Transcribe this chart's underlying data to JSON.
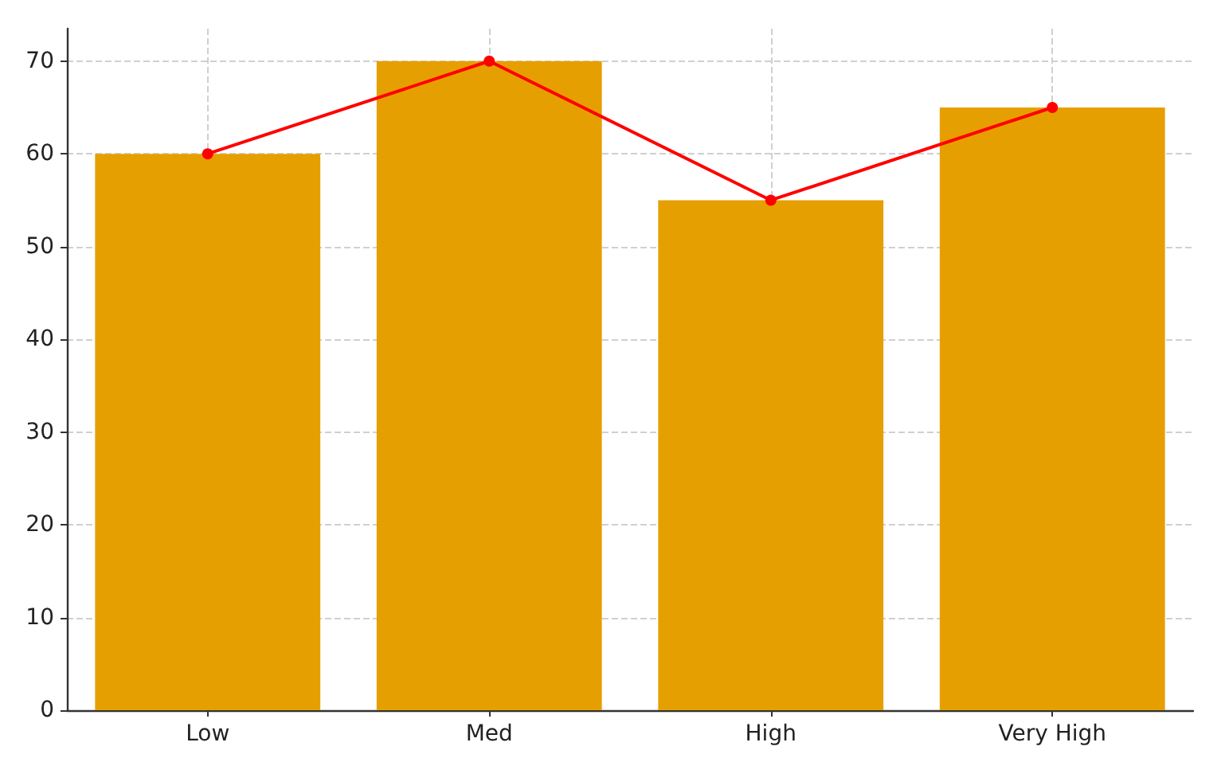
{
  "chart_data": {
    "type": "bar",
    "categories": [
      "Low",
      "Med",
      "High",
      "Very High"
    ],
    "series": [
      {
        "color": "#e69f00",
        "values": [
          60,
          70,
          55,
          65
        ]
      },
      {
        "type": "line",
        "color": "#ff0000",
        "values": [
          60,
          70,
          55,
          65
        ]
      }
    ],
    "ylim": [
      0,
      73.5
    ],
    "yticks": [
      0,
      10,
      20,
      30,
      40,
      50,
      60,
      70
    ],
    "grid": true,
    "marker": "circle",
    "line_style": "solid"
  }
}
